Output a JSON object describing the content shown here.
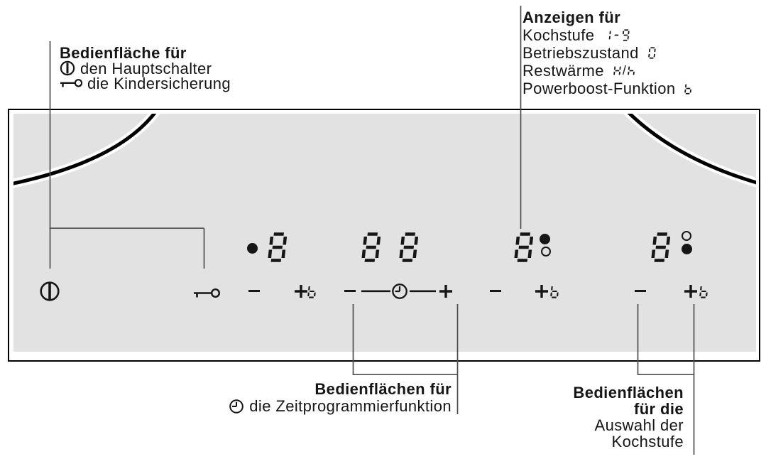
{
  "figure": {
    "panel_color": "#e2e2e2",
    "callout_line_color": "#4d4d4d",
    "ink_color": "#161616"
  },
  "annotations": {
    "top_left": {
      "title": "Bedienfläche für",
      "items": [
        {
          "icon": "power-icon",
          "text": "den Hauptschalter"
        },
        {
          "icon": "key-icon",
          "text": "die Kindersicherung"
        }
      ]
    },
    "top_right": {
      "title": "Anzeigen für",
      "items": [
        {
          "text": "Kochstufe",
          "symbol": "1-9"
        },
        {
          "text": "Betriebszustand",
          "symbol": "0"
        },
        {
          "text": "Restwärme",
          "symbol": "H/h"
        },
        {
          "text": "Powerboost-Funktion",
          "symbol": "b"
        }
      ]
    },
    "bottom_center": {
      "title": "Bedienflächen für",
      "items": [
        {
          "icon": "clock-icon",
          "text": "die Zeitprogrammierfunktion"
        }
      ]
    },
    "bottom_right": {
      "title_lines": [
        "Bedienflächen",
        "für die"
      ],
      "lines": [
        "Auswahl der",
        "Kochstufe"
      ]
    }
  },
  "panel": {
    "displays": [
      {
        "name": "cooking-zone-left-display",
        "value": "8",
        "dot_left": "filled"
      },
      {
        "name": "timer-display",
        "value": "88"
      },
      {
        "name": "cooking-zone-mid-display",
        "value": "8",
        "dot_top": "filled",
        "dot_bottom": "open"
      },
      {
        "name": "cooking-zone-right-display",
        "value": "8",
        "dot_top": "open",
        "dot_bottom": "filled"
      }
    ],
    "controls": {
      "minus": "−",
      "plus": "+",
      "boost": "b",
      "power": "power-icon",
      "childlock": "key-icon",
      "timer": "clock-icon"
    }
  }
}
